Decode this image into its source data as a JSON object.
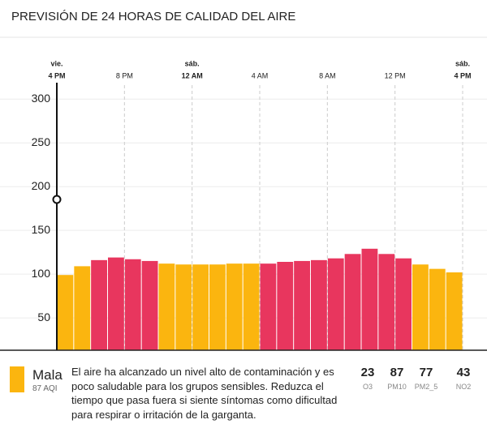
{
  "header": {
    "title": "PREVISIÓN DE 24 HORAS DE CALIDAD DEL AIRE"
  },
  "chart_data": {
    "type": "bar",
    "categories": [
      null,
      null,
      null,
      null,
      null,
      null,
      null,
      null,
      null,
      null,
      null,
      null,
      null,
      null,
      null,
      null,
      null,
      null,
      null,
      null,
      null,
      null,
      null,
      null
    ],
    "values": [
      99,
      109,
      116,
      119,
      117,
      115,
      112,
      111,
      111,
      111,
      112,
      112,
      112,
      114,
      115,
      116,
      118,
      123,
      129,
      123,
      118,
      111,
      106,
      102
    ],
    "colors": [
      "#fbb50f",
      "#fbb50f",
      "#e8365e",
      "#e8365e",
      "#e8365e",
      "#e8365e",
      "#fbb50f",
      "#fbb50f",
      "#fbb50f",
      "#fbb50f",
      "#fbb50f",
      "#fbb50f",
      "#e8365e",
      "#e8365e",
      "#e8365e",
      "#e8365e",
      "#e8365e",
      "#e8365e",
      "#e8365e",
      "#e8365e",
      "#e8365e",
      "#fbb50f",
      "#fbb50f",
      "#fbb50f"
    ],
    "ylim": [
      13,
      316
    ],
    "yticks": [
      50,
      100,
      150,
      200,
      250,
      300
    ],
    "grid": true,
    "xlim": [
      0,
      24
    ],
    "xticks": [
      {
        "value": 0,
        "label": "4 PM",
        "day": "vie."
      },
      {
        "value": 4,
        "label": "8 PM"
      },
      {
        "value": 8,
        "label": "12 AM",
        "day": "sáb."
      },
      {
        "value": 12,
        "label": "4 AM"
      },
      {
        "value": 16,
        "label": "8 AM"
      },
      {
        "value": 20,
        "label": "12 PM"
      },
      {
        "value": 24,
        "label": "4 PM",
        "day": "sáb."
      }
    ]
  },
  "summary": {
    "category": "Mala",
    "aqi": "87 AQI",
    "color": "#fbb50f",
    "message": "El aire ha alcanzado un nivel alto de contaminación y es poco saludable para los grupos sensibles. Reduzca el tiempo que pasa fuera si siente síntomas como dificultad para respirar o irritación de la garganta."
  },
  "pollutants": [
    {
      "value": 23,
      "name": "O3"
    },
    {
      "value": 87,
      "name": "PM10"
    },
    {
      "value": 77,
      "name": "PM2_5"
    },
    {
      "value": 43,
      "name": "NO2"
    }
  ]
}
